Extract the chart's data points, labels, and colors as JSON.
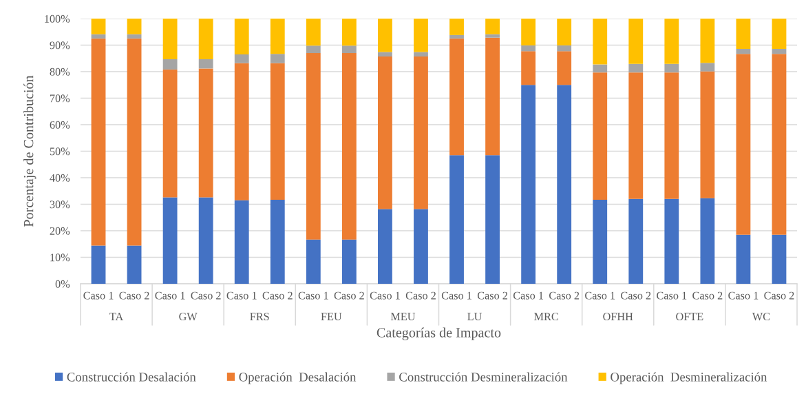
{
  "chart_data": {
    "type": "bar",
    "stacked": true,
    "xlabel": "Categorías de Impacto",
    "ylabel": "Porcentaje de Contribución",
    "categories": [
      "Caso 1",
      "Caso 2",
      "Caso 1",
      "Caso 2",
      "Caso 1",
      "Caso 2",
      "Caso 1",
      "Caso 2",
      "Caso 1",
      "Caso 2",
      "Caso 1",
      "Caso 2",
      "Caso 1",
      "Caso 2",
      "Caso 1",
      "Caso 2",
      "Caso 1",
      "Caso 2",
      "Caso 1",
      "Caso 2"
    ],
    "annotations": [
      "TA",
      "GW",
      "FRS",
      "FEU",
      "MEU",
      "LU",
      "MRC",
      "OFHH",
      "OFTE",
      "WC"
    ],
    "series": [
      {
        "name": "Construcción Desalación",
        "color": "#4472c4",
        "values": [
          14.4,
          14.4,
          32.6,
          32.6,
          31.5,
          31.7,
          16.7,
          16.7,
          28.2,
          28.2,
          48.5,
          48.5,
          75.0,
          75.0,
          31.7,
          32.0,
          32.0,
          32.3,
          18.5,
          18.5
        ]
      },
      {
        "name": "Operación  Desalación",
        "color": "#ed7d31",
        "values": [
          78.1,
          78.1,
          48.2,
          48.6,
          51.7,
          51.5,
          70.3,
          70.3,
          57.5,
          57.5,
          44.0,
          44.3,
          12.7,
          12.7,
          48.0,
          47.7,
          47.7,
          47.8,
          68.2,
          68.2
        ]
      },
      {
        "name": "Construcción Desmineralización",
        "color": "#a5a5a5",
        "values": [
          1.6,
          1.6,
          3.9,
          3.5,
          3.3,
          3.5,
          2.8,
          2.8,
          1.7,
          1.7,
          1.3,
          1.3,
          2.2,
          2.2,
          3.0,
          3.2,
          3.2,
          3.2,
          1.9,
          1.9
        ]
      },
      {
        "name": "Operación  Desmineralización",
        "color": "#ffc000",
        "values": [
          5.9,
          5.9,
          15.3,
          15.3,
          13.5,
          13.3,
          10.2,
          10.2,
          12.6,
          12.6,
          6.2,
          5.9,
          10.1,
          10.1,
          17.3,
          17.1,
          17.1,
          16.7,
          11.4,
          11.4
        ]
      }
    ],
    "ylim": [
      0,
      100
    ],
    "yticks": [
      {
        "value": 0,
        "label": "0%"
      },
      {
        "value": 10,
        "label": "10%"
      },
      {
        "value": 20,
        "label": "20%"
      },
      {
        "value": 30,
        "label": "30%"
      },
      {
        "value": 40,
        "label": "40%"
      },
      {
        "value": 50,
        "label": "50%"
      },
      {
        "value": 60,
        "label": "60%"
      },
      {
        "value": 70,
        "label": "70%"
      },
      {
        "value": 80,
        "label": "80%"
      },
      {
        "value": 90,
        "label": "90%"
      },
      {
        "value": 100,
        "label": "100%"
      }
    ],
    "grid": "y",
    "legend": "bottom"
  }
}
